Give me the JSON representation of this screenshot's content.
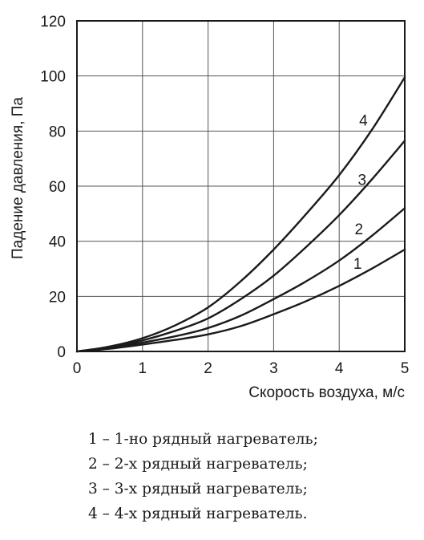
{
  "chart_data": {
    "type": "line",
    "title": "",
    "xlabel": "Скорость воздуха, м/с",
    "ylabel": "Падение давления, Па",
    "xlim": [
      0,
      5
    ],
    "ylim": [
      0,
      120
    ],
    "xticks": [
      "0",
      "1",
      "2",
      "3",
      "4",
      "5"
    ],
    "yticks": [
      "0",
      "20",
      "40",
      "60",
      "80",
      "100",
      "120"
    ],
    "grid": true,
    "line_color": "#1a1a1a",
    "series": [
      {
        "label": "1",
        "x": [
          0,
          0.5,
          1,
          1.5,
          2,
          2.5,
          3,
          3.5,
          4,
          4.5,
          5
        ],
        "y": [
          0,
          1,
          2.5,
          4.2,
          6.2,
          9.2,
          13.5,
          18.3,
          23.8,
          30.1,
          37
        ]
      },
      {
        "label": "2",
        "x": [
          0,
          0.5,
          1,
          1.5,
          2,
          2.5,
          3,
          3.5,
          4,
          4.5,
          5
        ],
        "y": [
          0,
          1.2,
          3.2,
          5.5,
          8.5,
          13,
          19,
          25.5,
          33,
          42,
          52
        ]
      },
      {
        "label": "3",
        "x": [
          0,
          0.5,
          1,
          1.5,
          2,
          2.5,
          3,
          3.5,
          4,
          4.5,
          5
        ],
        "y": [
          0,
          1.5,
          4,
          7.5,
          12,
          19,
          27.5,
          38,
          49.5,
          62.5,
          76.5
        ]
      },
      {
        "label": "4",
        "x": [
          0,
          0.5,
          1,
          1.5,
          2,
          2.5,
          3,
          3.5,
          4,
          4.5,
          5
        ],
        "y": [
          0,
          1.8,
          4.8,
          9.5,
          16,
          25.5,
          37,
          50,
          64,
          80.5,
          99.5
        ]
      }
    ],
    "curve_label_positions": [
      {
        "label": "1",
        "x": 4.28,
        "y": 32
      },
      {
        "label": "2",
        "x": 4.3,
        "y": 44.5
      },
      {
        "label": "3",
        "x": 4.35,
        "y": 62.5
      },
      {
        "label": "4",
        "x": 4.37,
        "y": 84
      }
    ]
  },
  "legend": {
    "items": [
      "1 – 1-но рядный нагреватель;",
      "2 – 2-х рядный нагреватель;",
      "3 – 3-х рядный нагреватель;",
      "4 – 4-х рядный нагреватель."
    ]
  }
}
